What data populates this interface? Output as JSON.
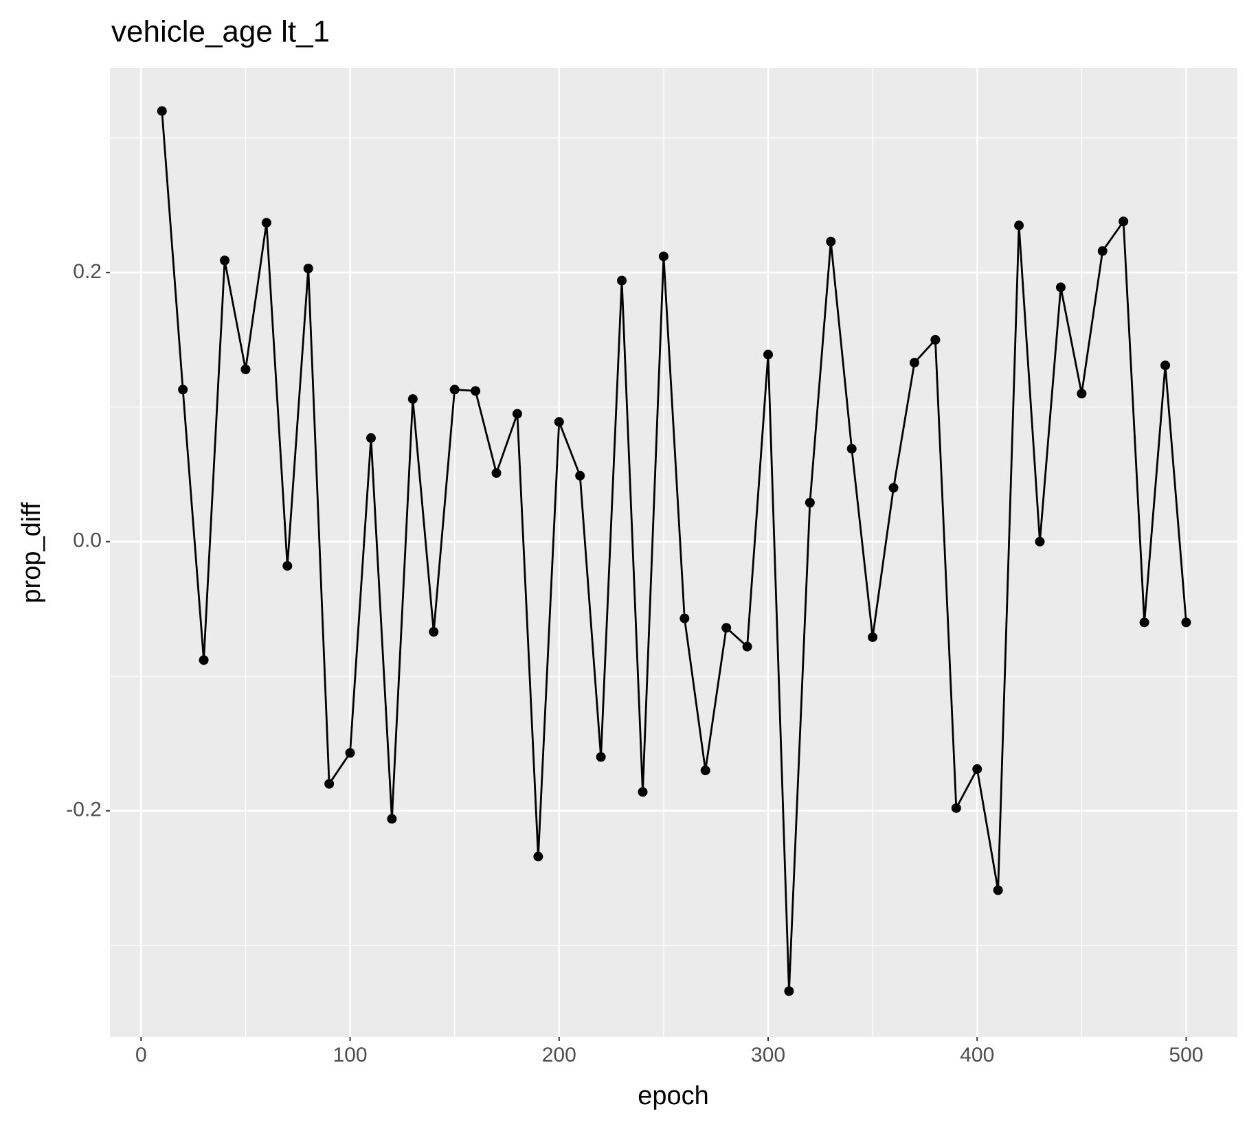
{
  "chart_data": {
    "type": "line",
    "title": "vehicle_age lt_1",
    "x_label": "epoch",
    "y_label": "prop_diff",
    "x": [
      10,
      20,
      30,
      40,
      50,
      60,
      70,
      80,
      90,
      100,
      110,
      120,
      130,
      140,
      150,
      160,
      170,
      180,
      190,
      200,
      210,
      220,
      230,
      240,
      250,
      260,
      270,
      280,
      290,
      300,
      310,
      320,
      330,
      340,
      350,
      360,
      370,
      380,
      390,
      400,
      410,
      420,
      430,
      440,
      450,
      460,
      470,
      480,
      490,
      500
    ],
    "series": [
      {
        "color": "#000000",
        "values": [
          0.32,
          0.113,
          -0.088,
          0.209,
          0.128,
          0.237,
          -0.018,
          0.203,
          -0.18,
          -0.157,
          0.077,
          -0.206,
          0.106,
          -0.067,
          0.113,
          0.112,
          0.051,
          0.095,
          -0.234,
          0.089,
          0.049,
          -0.16,
          0.194,
          -0.186,
          0.212,
          -0.057,
          -0.17,
          -0.064,
          -0.078,
          0.139,
          -0.334,
          0.029,
          0.223,
          0.069,
          -0.071,
          0.04,
          0.133,
          0.15,
          -0.198,
          -0.169,
          -0.259,
          0.235,
          0.0,
          0.189,
          0.11,
          0.216,
          0.238,
          -0.06,
          0.131,
          -0.06
        ]
      }
    ],
    "xlim": [
      -14.9,
      524.5
    ],
    "ylim": [
      -0.368,
      0.352
    ],
    "xticks": [
      0,
      100,
      200,
      300,
      400,
      500
    ],
    "yticks": [
      -0.2,
      {
        "value": 0,
        "label": "0.0"
      },
      0.2
    ],
    "x_minor_grid": [
      50,
      150,
      250,
      350,
      450
    ],
    "y_minor_grid": [
      -0.3,
      -0.1,
      0.1,
      0.3
    ],
    "grid": true
  }
}
